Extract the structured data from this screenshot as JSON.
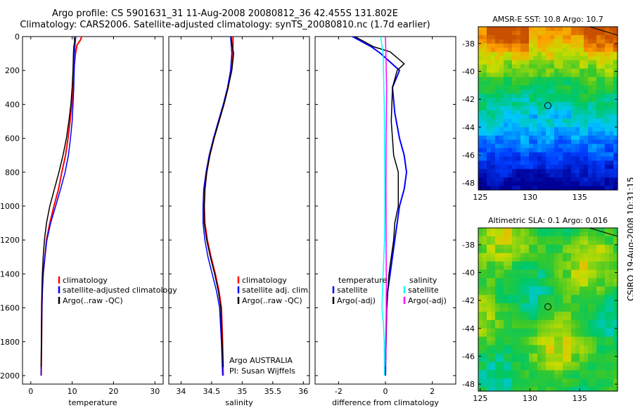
{
  "header": {
    "title_line1": "Argo profile: CS 5901631_31 11-Aug-2008 20080812_36 42.455S 131.802E",
    "title_line2": "Climatology: CARS2006. Satellite-adjusted climatology: synTS_20080810.nc (1.7d earlier)"
  },
  "credit": "CSIRO 19-Aug-2008 10:31:15",
  "colors": {
    "climatology": "#ff0000",
    "satellite": "#0000ff",
    "argo": "#000000",
    "sat_diff": "#00ffff",
    "argo_sal_diff": "#ff00ff"
  },
  "chart_data": [
    {
      "type": "line",
      "xlabel": "temperature",
      "ylabel": "",
      "xlim": [
        -2,
        32
      ],
      "ylim": [
        2050,
        0
      ],
      "xticks": [
        0,
        10,
        20,
        30
      ],
      "yticks": [
        0,
        200,
        400,
        600,
        800,
        1000,
        1200,
        1400,
        1600,
        1800,
        2000
      ],
      "legend": [
        "climatology",
        "satellite-adjusted climatology",
        "Argo(..raw -QC)"
      ],
      "legend_position": "lower-right",
      "series": [
        {
          "name": "climatology",
          "color": "#ff0000",
          "x": [
            12.3,
            12.0,
            11.2,
            10.8,
            10.4,
            10.2,
            9.9,
            9.5,
            9.0,
            8.4,
            7.5,
            6.7,
            5.6,
            4.6,
            3.8,
            3.4,
            3.0,
            2.8,
            2.7,
            2.6,
            2.5
          ],
          "y": [
            0,
            20,
            50,
            100,
            200,
            300,
            400,
            500,
            600,
            700,
            800,
            900,
            1000,
            1100,
            1200,
            1300,
            1400,
            1500,
            1600,
            1800,
            2000
          ]
        },
        {
          "name": "satellite-adjusted climatology",
          "color": "#0000ff",
          "x": [
            10.9,
            10.8,
            10.7,
            10.6,
            10.5,
            10.4,
            10.2,
            10.0,
            9.6,
            9.1,
            8.3,
            7.2,
            6.0,
            4.8,
            3.9,
            3.4,
            3.0,
            2.8,
            2.7,
            2.6,
            2.5
          ],
          "y": [
            0,
            20,
            50,
            100,
            200,
            300,
            400,
            500,
            600,
            700,
            800,
            900,
            1000,
            1100,
            1200,
            1300,
            1400,
            1500,
            1600,
            1800,
            2000
          ]
        },
        {
          "name": "Argo(..raw -QC)",
          "color": "#000000",
          "x": [
            10.5,
            10.6,
            10.4,
            10.3,
            10.2,
            10.0,
            9.7,
            9.2,
            8.6,
            7.8,
            6.8,
            5.7,
            4.6,
            3.8,
            3.3,
            3.0,
            2.8,
            2.7,
            2.6,
            2.5
          ],
          "y": [
            0,
            30,
            60,
            100,
            200,
            300,
            400,
            500,
            600,
            700,
            800,
            900,
            1000,
            1100,
            1200,
            1300,
            1400,
            1500,
            1600,
            1950
          ]
        }
      ]
    },
    {
      "type": "line",
      "xlabel": "salinity",
      "ylabel": "",
      "xlim": [
        33.8,
        36.1
      ],
      "ylim": [
        2050,
        0
      ],
      "xticks": [
        34,
        34.5,
        35,
        35.5,
        36
      ],
      "annotations": [
        "Argo AUSTRALIA",
        "PI: Susan Wijffels"
      ],
      "legend": [
        "climatology",
        "satellite adj. clim.",
        "Argo(..raw -QC)"
      ],
      "legend_position": "lower-right",
      "series": [
        {
          "name": "climatology",
          "color": "#ff0000",
          "x": [
            34.85,
            34.85,
            34.84,
            34.82,
            34.77,
            34.7,
            34.62,
            34.54,
            34.47,
            34.42,
            34.39,
            34.38,
            34.39,
            34.43,
            34.49,
            34.56,
            34.62,
            34.66,
            34.68,
            34.69
          ],
          "y": [
            0,
            50,
            100,
            200,
            300,
            400,
            500,
            600,
            700,
            800,
            900,
            1000,
            1100,
            1200,
            1300,
            1400,
            1500,
            1600,
            1800,
            2000
          ]
        },
        {
          "name": "satellite adj. clim.",
          "color": "#0000ff",
          "x": [
            34.81,
            34.82,
            34.83,
            34.81,
            34.76,
            34.69,
            34.61,
            34.53,
            34.46,
            34.41,
            34.37,
            34.36,
            34.36,
            34.39,
            34.44,
            34.51,
            34.58,
            34.63,
            34.66,
            34.68
          ],
          "y": [
            0,
            50,
            100,
            200,
            300,
            400,
            500,
            600,
            700,
            800,
            900,
            1000,
            1100,
            1200,
            1300,
            1400,
            1500,
            1600,
            1800,
            2000
          ]
        },
        {
          "name": "Argo(..raw -QC)",
          "color": "#000000",
          "x": [
            34.82,
            34.83,
            34.86,
            34.83,
            34.77,
            34.7,
            34.62,
            34.54,
            34.47,
            34.42,
            34.39,
            34.38,
            34.38,
            34.42,
            34.48,
            34.55,
            34.61,
            34.65,
            34.67,
            34.69
          ],
          "y": [
            0,
            40,
            100,
            200,
            300,
            400,
            500,
            600,
            700,
            800,
            900,
            1000,
            1100,
            1200,
            1300,
            1400,
            1500,
            1600,
            1800,
            1950
          ]
        }
      ]
    },
    {
      "type": "line",
      "xlabel": "difference from climatology",
      "ylabel": "",
      "xlim": [
        -3,
        3
      ],
      "ylim": [
        2050,
        0
      ],
      "xticks": [
        -2,
        0,
        2
      ],
      "legend_titles": [
        "temperature",
        "salinity"
      ],
      "legend": [
        "satellite",
        "Argo(-adj)",
        "satellite",
        "Argo(-adj)"
      ],
      "legend_position": "lower",
      "series": [
        {
          "name": "satellite",
          "color": "#0000ff",
          "x": [
            -1.4,
            -0.6,
            -0.2,
            0.2,
            0.6,
            0.3,
            0.4,
            0.6,
            0.8,
            0.9,
            0.8,
            0.6,
            0.5,
            0.4,
            0.3,
            0.2,
            0.1,
            0.05,
            0.02,
            0.0
          ],
          "y": [
            0,
            60,
            100,
            150,
            200,
            300,
            450,
            600,
            700,
            800,
            900,
            1000,
            1100,
            1200,
            1300,
            1400,
            1500,
            1600,
            1800,
            2000
          ]
        },
        {
          "name": "Argo(-adj)",
          "color": "#000000",
          "x": [
            -1.3,
            -0.5,
            0.2,
            0.8,
            0.5,
            0.3,
            0.25,
            0.35,
            0.55,
            0.55,
            0.4,
            0.35,
            0.25,
            0.15,
            0.1,
            0.05,
            0.03,
            0.0
          ],
          "y": [
            0,
            60,
            90,
            160,
            200,
            300,
            500,
            700,
            800,
            1000,
            1100,
            1200,
            1300,
            1400,
            1500,
            1600,
            1800,
            1950
          ]
        },
        {
          "name": "satellite",
          "color": "#00ffff",
          "x": [
            -0.2,
            -0.1,
            -0.05,
            -0.03,
            -0.02,
            -0.04,
            -0.1,
            -0.15,
            -0.08,
            -0.05,
            -0.04
          ],
          "y": [
            0,
            100,
            400,
            800,
            1000,
            1200,
            1400,
            1600,
            1700,
            1800,
            2000
          ]
        },
        {
          "name": "Argo(-adj)",
          "color": "#ff00ff",
          "x": [
            0.0,
            0.02,
            0.05,
            0.03,
            0.02,
            0.03,
            0.04,
            0.03,
            0.02,
            0.0
          ],
          "y": [
            0,
            100,
            300,
            600,
            900,
            1200,
            1500,
            1700,
            1850,
            1950
          ]
        }
      ]
    },
    {
      "type": "heatmap",
      "title": "AMSR-E SST: 10.8 Argo: 10.7",
      "xlim": [
        124.8,
        138.8
      ],
      "ylim": [
        -48.5,
        -36.8
      ],
      "xticks": [
        125,
        130,
        135
      ],
      "yticks": [
        -38,
        -40,
        -42,
        -44,
        -46,
        -48
      ],
      "marker": {
        "lon": 131.8,
        "lat": -42.455
      }
    },
    {
      "type": "heatmap",
      "title": "Altimetric SLA: 0.1 Argo: 0.016",
      "xlim": [
        124.8,
        138.8
      ],
      "ylim": [
        -48.5,
        -36.8
      ],
      "xticks": [
        125,
        130,
        135
      ],
      "yticks": [
        -38,
        -40,
        -42,
        -44,
        -46,
        -48
      ],
      "marker": {
        "lon": 131.8,
        "lat": -42.455
      }
    }
  ]
}
